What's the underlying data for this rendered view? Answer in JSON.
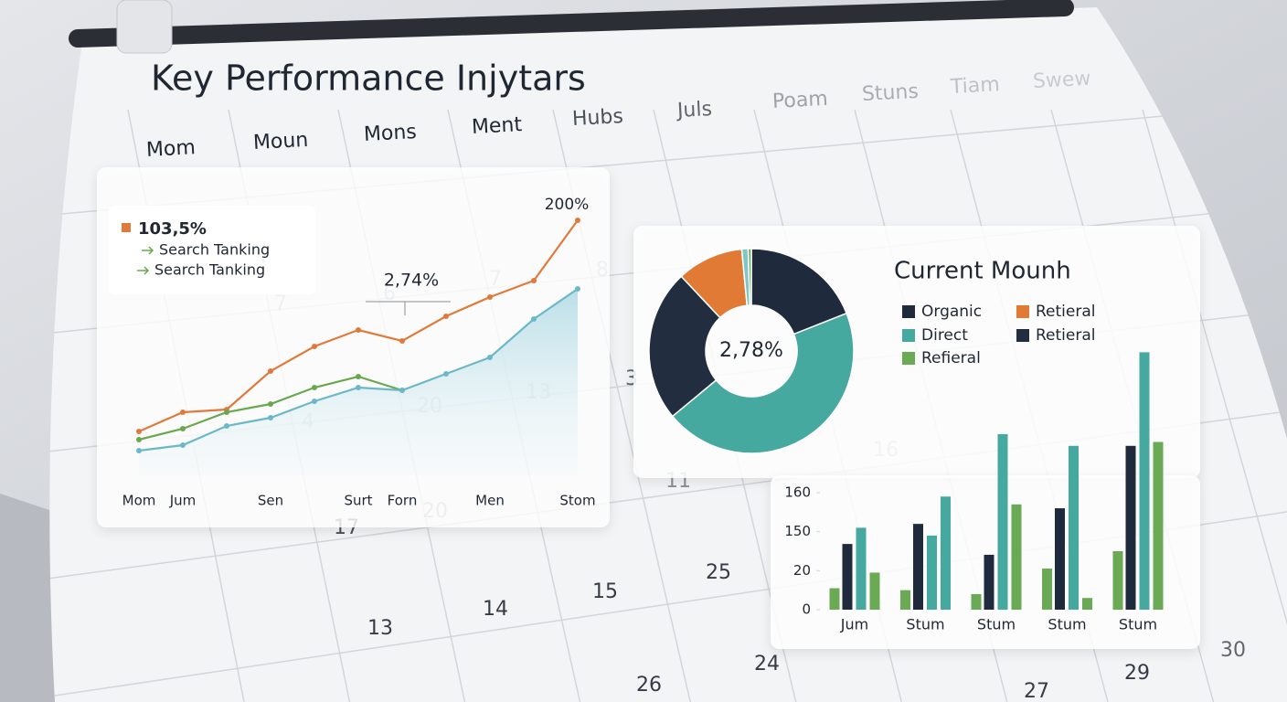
{
  "title": "Key Performance Injytars",
  "calendar": {
    "weekdays": [
      "Mom",
      "Moun",
      "Mons",
      "Ment",
      "Hubs",
      "Juls",
      "Poam",
      "Stuns",
      "Tiam",
      "Swew"
    ],
    "days": [
      "7",
      "6",
      "7",
      "8",
      "3",
      "4",
      "20",
      "13",
      "17",
      "20",
      "11",
      "16",
      "13",
      "14",
      "15",
      "25",
      "24",
      "26",
      "27",
      "29",
      "30"
    ]
  },
  "chart_data": [
    {
      "type": "line",
      "categories": [
        "Mom",
        "Jum",
        null,
        "Sen",
        null,
        "Surt",
        "Forn",
        null,
        "Men",
        null,
        "Stom"
      ],
      "series": [
        {
          "name": "103,5%",
          "color": "#e07a3c",
          "values": [
            16,
            23,
            24,
            38,
            47,
            53,
            49,
            58,
            65,
            71,
            93
          ]
        },
        {
          "name": "Search Tanking",
          "color": "#6aa84f",
          "values": [
            13,
            17,
            23,
            26,
            32,
            36,
            31,
            null,
            null,
            null,
            null
          ]
        },
        {
          "name": "Search Tanking",
          "color": "#6bb8c8",
          "values": [
            9,
            11,
            18,
            21,
            27,
            32,
            31,
            37,
            43,
            57,
            68
          ],
          "area": true
        }
      ],
      "ylim": [
        0,
        100
      ],
      "annotations": [
        "200%",
        "2,74%"
      ]
    },
    {
      "type": "pie",
      "title": "Current Mounh",
      "center_label": "2,78%",
      "categories": [
        "Organic",
        "Direct",
        "Retieral",
        "Retieral",
        null,
        "Refieral"
      ],
      "values": [
        19,
        45,
        24,
        10.5,
        1,
        0.5
      ],
      "colors": [
        "#1f2a3c",
        "#45a9a0",
        "#222d40",
        "#e07a35",
        "#7fc6c6",
        "#6aaa55"
      ]
    },
    {
      "type": "bar",
      "categories": [
        "Jum",
        "Stum",
        "Stum",
        "Stum",
        "Stum"
      ],
      "series": [
        {
          "color": "#6aaa55",
          "values": [
            11,
            10,
            8,
            27,
            85
          ]
        },
        {
          "color": "#1f2a3c",
          "values": [
            109,
            152,
            73,
            156,
            172
          ]
        },
        {
          "color": "#45a9a0",
          "values": [
            151,
            137,
            175,
            172,
            196
          ]
        },
        {
          "colors": [
            "#6aaa55",
            "#45a9a0",
            "#6aaa55",
            "#6aaa55",
            "#6aaa55"
          ],
          "values": [
            19,
            159,
            157,
            6,
            173
          ]
        }
      ],
      "ylim": [
        0,
        200
      ],
      "yticks": [
        0,
        20,
        150,
        160
      ]
    }
  ]
}
